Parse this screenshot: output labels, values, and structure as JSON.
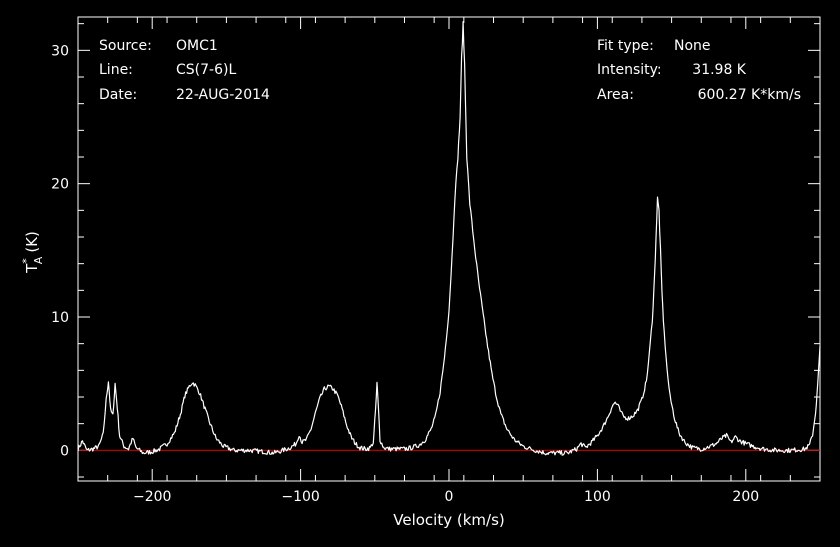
{
  "header": {
    "source_label": "Source:",
    "source_value": "OMC1",
    "line_label": "Line:",
    "line_value": "CS(7-6)L",
    "date_label": "Date:",
    "date_value": "22-AUG-2014",
    "fit_label": "Fit type:",
    "fit_value": "None",
    "intensity_label": "Intensity:",
    "intensity_value": "31.98 K",
    "area_label": "Area:",
    "area_value": "600.27 K*km/s"
  },
  "colors": {
    "background": "#000000",
    "trace": "#ffffff",
    "baseline": "#cc0000"
  },
  "chart_data": {
    "type": "line",
    "title": "",
    "xlabel": "Velocity (km/s)",
    "ylabel_main": "T",
    "ylabel_sup": "*",
    "ylabel_sub": "A",
    "ylabel_unit": "(K)",
    "xlim": [
      -250,
      250
    ],
    "ylim": [
      -2.3,
      32.5
    ],
    "x_ticks": [
      -200,
      -100,
      0,
      100,
      200
    ],
    "x_tick_labels": [
      "−200",
      "−100",
      "0",
      "100",
      "200"
    ],
    "y_ticks": [
      0,
      10,
      20,
      30
    ],
    "y_tick_labels": [
      "0",
      "10",
      "20",
      "30"
    ],
    "baseline_y": 0,
    "series": [
      {
        "points": [
          [
            -250,
            0.1
          ],
          [
            -247,
            0.7
          ],
          [
            -244,
            0.0
          ],
          [
            -240,
            0.1
          ],
          [
            -236,
            0.3
          ],
          [
            -233,
            1.2
          ],
          [
            -231,
            3.8
          ],
          [
            -229.5,
            5.2
          ],
          [
            -228,
            3.0
          ],
          [
            -226.5,
            2.6
          ],
          [
            -225,
            5.0
          ],
          [
            -223.5,
            3.2
          ],
          [
            -222,
            1.1
          ],
          [
            -219,
            0.3
          ],
          [
            -216,
            0.1
          ],
          [
            -213,
            0.9
          ],
          [
            -211,
            0.2
          ],
          [
            -206,
            -0.2
          ],
          [
            -200,
            -0.1
          ],
          [
            -195,
            0.1
          ],
          [
            -190,
            0.5
          ],
          [
            -185,
            1.3
          ],
          [
            -181,
            2.7
          ],
          [
            -178,
            4.1
          ],
          [
            -175,
            4.8
          ],
          [
            -173,
            5.1
          ],
          [
            -171,
            4.9
          ],
          [
            -168,
            4.3
          ],
          [
            -165,
            3.3
          ],
          [
            -161,
            2.0
          ],
          [
            -157,
            0.9
          ],
          [
            -152,
            0.3
          ],
          [
            -145,
            0.0
          ],
          [
            -135,
            0.0
          ],
          [
            -125,
            -0.1
          ],
          [
            -118,
            -0.2
          ],
          [
            -112,
            0.0
          ],
          [
            -107,
            0.2
          ],
          [
            -103,
            0.5
          ],
          [
            -101,
            1.2
          ],
          [
            -99,
            0.6
          ],
          [
            -96,
            0.8
          ],
          [
            -93,
            1.6
          ],
          [
            -90,
            2.8
          ],
          [
            -87,
            3.9
          ],
          [
            -84,
            4.6
          ],
          [
            -81,
            4.8
          ],
          [
            -78,
            4.6
          ],
          [
            -75,
            4.1
          ],
          [
            -72,
            3.1
          ],
          [
            -69,
            1.9
          ],
          [
            -66,
            1.0
          ],
          [
            -63,
            0.5
          ],
          [
            -60,
            0.2
          ],
          [
            -56,
            0.1
          ],
          [
            -53,
            0.2
          ],
          [
            -51,
            0.6
          ],
          [
            -49.5,
            3.0
          ],
          [
            -48.5,
            5.0
          ],
          [
            -47.5,
            3.0
          ],
          [
            -46.5,
            0.8
          ],
          [
            -44,
            0.2
          ],
          [
            -40,
            0.1
          ],
          [
            -35,
            0.1
          ],
          [
            -30,
            0.1
          ],
          [
            -25,
            0.2
          ],
          [
            -20,
            0.4
          ],
          [
            -16,
            0.8
          ],
          [
            -12,
            1.6
          ],
          [
            -9,
            2.6
          ],
          [
            -6,
            4.4
          ],
          [
            -3,
            7.0
          ],
          [
            0,
            10.5
          ],
          [
            2,
            14.5
          ],
          [
            4,
            19.0
          ],
          [
            6,
            22.0
          ],
          [
            7.5,
            25.0
          ],
          [
            8.5,
            29.5
          ],
          [
            9.5,
            31.98
          ],
          [
            10.5,
            29.0
          ],
          [
            12,
            22.0
          ],
          [
            14,
            18.5
          ],
          [
            16,
            16.5
          ],
          [
            18,
            14.5
          ],
          [
            20,
            12.6
          ],
          [
            23,
            10.2
          ],
          [
            26,
            7.8
          ],
          [
            29,
            5.7
          ],
          [
            32,
            4.0
          ],
          [
            35,
            2.7
          ],
          [
            39,
            1.6
          ],
          [
            44,
            0.8
          ],
          [
            50,
            0.3
          ],
          [
            58,
            0.0
          ],
          [
            65,
            -0.2
          ],
          [
            72,
            -0.2
          ],
          [
            80,
            -0.2
          ],
          [
            86,
            0.1
          ],
          [
            89,
            0.5
          ],
          [
            92,
            0.2
          ],
          [
            96,
            0.6
          ],
          [
            100,
            1.1
          ],
          [
            104,
            1.8
          ],
          [
            107,
            2.5
          ],
          [
            110,
            3.3
          ],
          [
            112,
            3.6
          ],
          [
            114,
            3.3
          ],
          [
            116,
            2.8
          ],
          [
            118,
            2.5
          ],
          [
            121,
            2.4
          ],
          [
            124,
            2.6
          ],
          [
            127,
            3.0
          ],
          [
            130,
            3.8
          ],
          [
            133,
            5.2
          ],
          [
            135,
            7.2
          ],
          [
            137,
            9.8
          ],
          [
            138.5,
            13.0
          ],
          [
            139.5,
            16.0
          ],
          [
            140.5,
            18.9
          ],
          [
            141.5,
            18.0
          ],
          [
            142.5,
            15.0
          ],
          [
            143.5,
            11.8
          ],
          [
            145,
            8.8
          ],
          [
            147,
            6.0
          ],
          [
            149,
            4.0
          ],
          [
            152,
            2.4
          ],
          [
            155,
            1.3
          ],
          [
            159,
            0.6
          ],
          [
            164,
            0.2
          ],
          [
            170,
            0.1
          ],
          [
            176,
            0.3
          ],
          [
            180,
            0.5
          ],
          [
            184,
            0.9
          ],
          [
            187,
            1.1
          ],
          [
            190,
            0.6
          ],
          [
            193,
            1.0
          ],
          [
            196,
            0.7
          ],
          [
            200,
            0.5
          ],
          [
            205,
            0.3
          ],
          [
            212,
            0.1
          ],
          [
            220,
            0.0
          ],
          [
            230,
            0.0
          ],
          [
            240,
            0.1
          ],
          [
            243,
            0.4
          ],
          [
            245,
            1.2
          ],
          [
            247,
            2.8
          ],
          [
            248.5,
            5.0
          ],
          [
            250,
            7.8
          ]
        ]
      }
    ]
  }
}
